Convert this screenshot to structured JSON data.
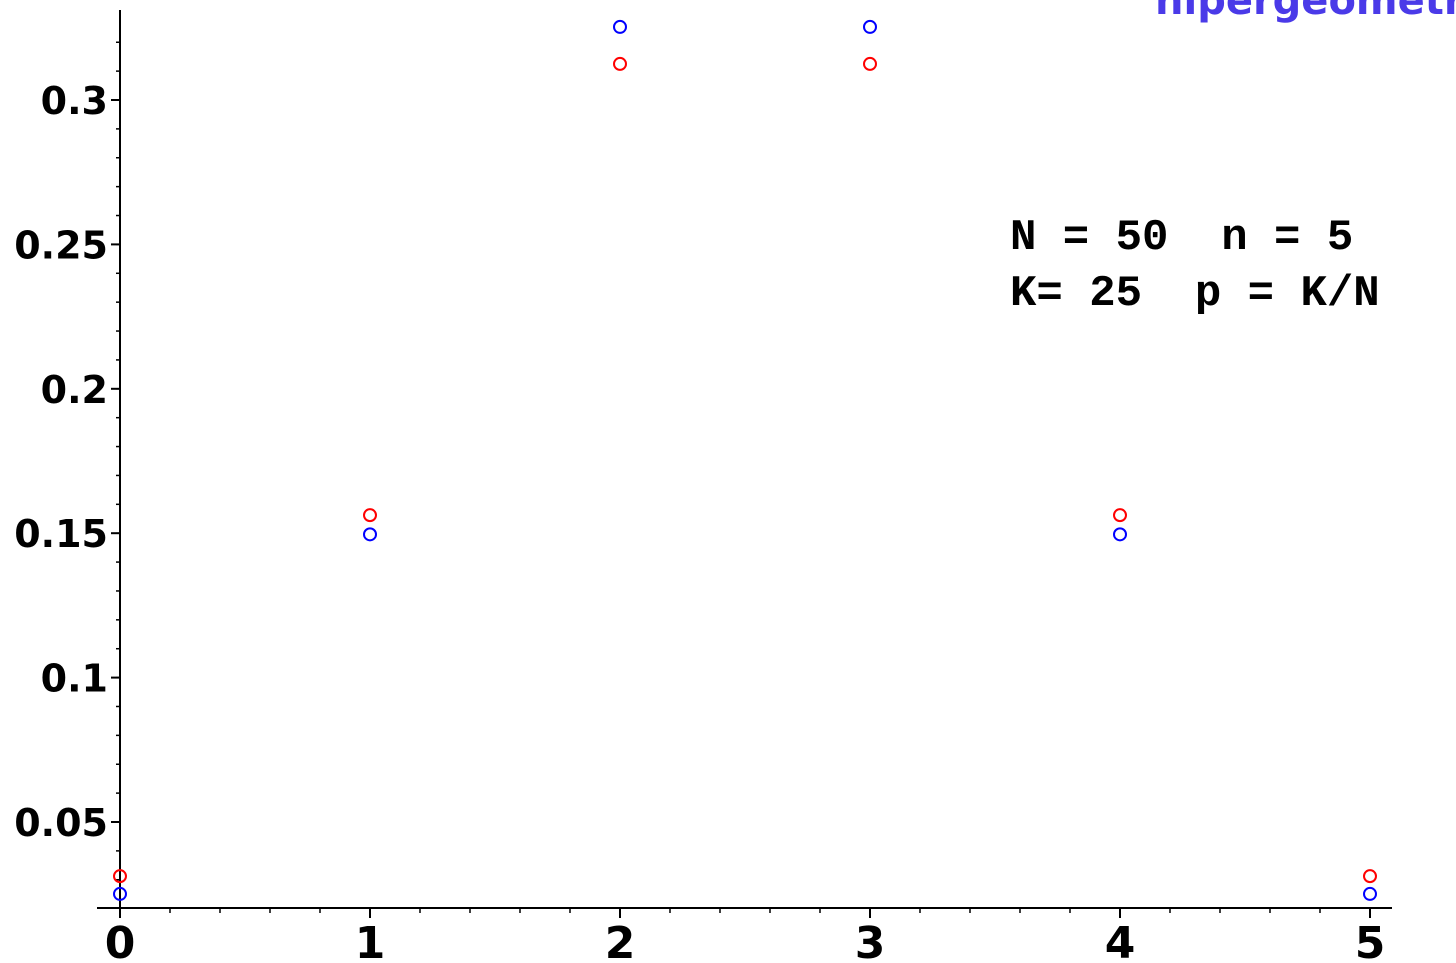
{
  "title": "hipergeometr",
  "params": {
    "line1": "N = 50  n = 5",
    "line2": "K= 25  p = K/N"
  },
  "colors": {
    "title": "#4a3ae8",
    "series_hypergeometric": "#0000ff",
    "series_binomial": "#ff0000",
    "axis": "#000000"
  },
  "chart_data": {
    "type": "scatter",
    "title": "",
    "xlabel": "",
    "ylabel": "",
    "xlim": [
      0,
      5
    ],
    "ylim": [
      0.0195,
      0.328
    ],
    "x_ticks": [
      {
        "value": 0,
        "label": "0"
      },
      {
        "value": 1,
        "label": "1"
      },
      {
        "value": 2,
        "label": "2"
      },
      {
        "value": 3,
        "label": "3"
      },
      {
        "value": 4,
        "label": "4"
      },
      {
        "value": 5,
        "label": "5"
      }
    ],
    "y_ticks": [
      {
        "value": 0.05,
        "label": "0.05"
      },
      {
        "value": 0.1,
        "label": "0.1"
      },
      {
        "value": 0.15,
        "label": "0.15"
      },
      {
        "value": 0.2,
        "label": "0.2"
      },
      {
        "value": 0.25,
        "label": "0.25"
      },
      {
        "value": 0.3,
        "label": "0.3"
      }
    ],
    "x_minor_ticks_per_unit": 5,
    "y_minor_step": 0.01,
    "grid": false,
    "marker": "open-circle",
    "series": [
      {
        "color": "#0000ff",
        "x": [
          0,
          1,
          2,
          3,
          4,
          5
        ],
        "y": [
          0.0251,
          0.1496,
          0.3253,
          0.3253,
          0.1496,
          0.0251
        ]
      },
      {
        "color": "#ff0000",
        "x": [
          0,
          1,
          2,
          3,
          4,
          5
        ],
        "y": [
          0.03125,
          0.15625,
          0.3125,
          0.3125,
          0.15625,
          0.03125
        ]
      }
    ]
  }
}
